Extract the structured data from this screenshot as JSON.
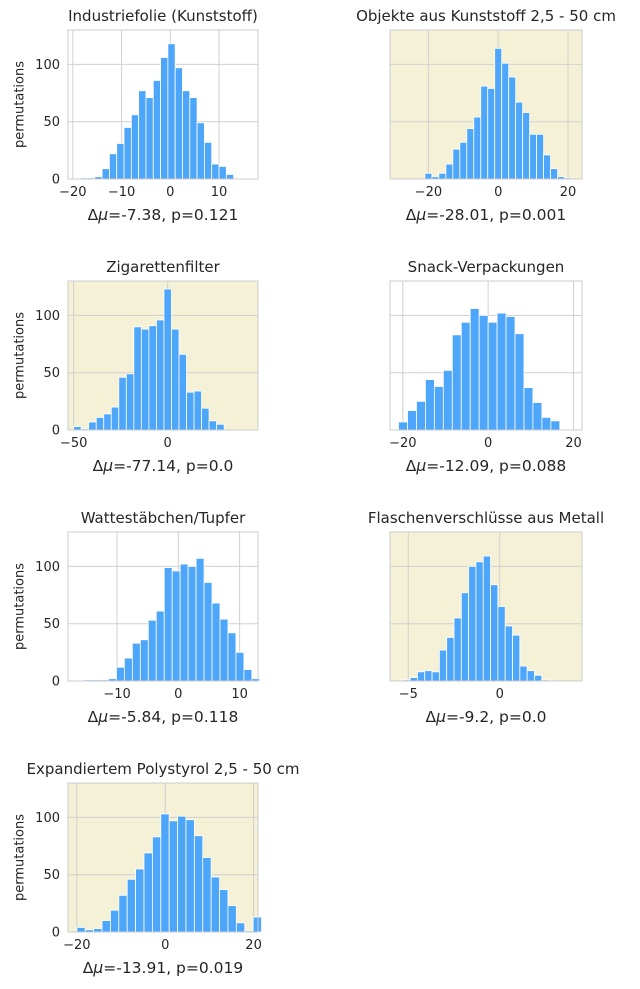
{
  "chart_data": [
    {
      "type": "histogram",
      "title": "Industriefolie (Kunststoff)",
      "ylabel": "permutations",
      "caption_prefix": "Δ",
      "caption_mu": "μ",
      "caption_rest": "=-7.38, p=0.121",
      "observed_diff": -7.38,
      "p_value": 0.121,
      "highlighted": false,
      "background": "#ffffff",
      "xlim": [
        -21,
        18
      ],
      "ylim": [
        0,
        130
      ],
      "xticks": [
        -20,
        -10,
        0,
        10
      ],
      "yticks": [
        0,
        50,
        100
      ],
      "bin_start": -18.5,
      "bin_width": 1.5,
      "counts": [
        1,
        1,
        2,
        9,
        22,
        31,
        45,
        56,
        77,
        71,
        86,
        106,
        118,
        97,
        77,
        71,
        49,
        32,
        13,
        11,
        4
      ]
    },
    {
      "type": "histogram",
      "title": "Objekte aus Kunststoff 2,5 - 50 cm",
      "ylabel": "",
      "caption_prefix": "Δ",
      "caption_mu": "μ",
      "caption_rest": "=-28.01, p=0.001",
      "observed_diff": -28.01,
      "p_value": 0.001,
      "highlighted": true,
      "background": "#f4f1d6",
      "xlim": [
        -31,
        24
      ],
      "ylim": [
        0,
        130
      ],
      "xticks": [
        -20,
        0,
        20
      ],
      "yticks": [
        0,
        50,
        100
      ],
      "bin_start": -21,
      "bin_width": 2,
      "counts": [
        5,
        2,
        5,
        13,
        26,
        32,
        44,
        54,
        81,
        79,
        114,
        101,
        89,
        67,
        58,
        39,
        39,
        21,
        9,
        2,
        1
      ]
    },
    {
      "type": "histogram",
      "title": "Zigarettenfilter",
      "ylabel": "permutations",
      "caption_prefix": "Δ",
      "caption_mu": "μ",
      "caption_rest": "=-77.14, p=0.0",
      "observed_diff": -77.14,
      "p_value": 0.0,
      "highlighted": true,
      "background": "#f4f1d6",
      "xlim": [
        -53,
        48
      ],
      "ylim": [
        0,
        130
      ],
      "xticks": [
        -50,
        0
      ],
      "yticks": [
        0,
        50,
        100
      ],
      "bin_start": -50,
      "bin_width": 4,
      "counts": [
        3,
        1,
        7,
        11,
        14,
        20,
        46,
        49,
        90,
        88,
        91,
        96,
        123,
        88,
        66,
        33,
        34,
        19,
        8,
        5
      ]
    },
    {
      "type": "histogram",
      "title": "Snack-Verpackungen",
      "ylabel": "",
      "caption_prefix": "Δ",
      "caption_mu": "μ",
      "caption_rest": "=-12.09, p=0.088",
      "observed_diff": -12.09,
      "p_value": 0.088,
      "highlighted": false,
      "background": "#ffffff",
      "xlim": [
        -23,
        22
      ],
      "ylim": [
        0,
        130
      ],
      "xticks": [
        -20,
        0,
        20
      ],
      "yticks": [
        0,
        50,
        100
      ],
      "bin_start": -21,
      "bin_width": 2.1,
      "counts": [
        7,
        17,
        25,
        44,
        38,
        52,
        83,
        94,
        106,
        100,
        94,
        102,
        99,
        84,
        37,
        24,
        11,
        8
      ]
    },
    {
      "type": "histogram",
      "title": "Wattestäbchen/Tupfer",
      "ylabel": "permutations",
      "caption_prefix": "Δ",
      "caption_mu": "μ",
      "caption_rest": "=-5.84, p=0.118",
      "observed_diff": -5.84,
      "p_value": 0.118,
      "highlighted": false,
      "background": "#ffffff",
      "xlim": [
        -18,
        13
      ],
      "ylim": [
        0,
        130
      ],
      "xticks": [
        -10,
        0,
        10
      ],
      "yticks": [
        0,
        50,
        100
      ],
      "bin_start": -15.3,
      "bin_width": 1.3,
      "counts": [
        1,
        1,
        1,
        2,
        12,
        20,
        33,
        36,
        53,
        61,
        99,
        96,
        102,
        100,
        107,
        86,
        68,
        54,
        42,
        25,
        10,
        2
      ]
    },
    {
      "type": "histogram",
      "title": "Flaschenverschlüsse aus Metall",
      "ylabel": "",
      "caption_prefix": "Δ",
      "caption_mu": "μ",
      "caption_rest": "=-9.2, p=0.0",
      "observed_diff": -9.2,
      "p_value": 0.0,
      "highlighted": true,
      "background": "#f4f1d6",
      "xlim": [
        -6,
        4.5
      ],
      "ylim": [
        0,
        130
      ],
      "xticks": [
        -5,
        0
      ],
      "yticks": [
        0,
        50,
        100
      ],
      "bin_start": -5.3,
      "bin_width": 0.4,
      "counts": [
        1,
        3,
        8,
        9,
        8,
        27,
        38,
        55,
        77,
        100,
        104,
        109,
        84,
        65,
        48,
        40,
        13,
        9,
        5,
        1
      ]
    },
    {
      "type": "histogram",
      "title": "Expandiertem Polystyrol 2,5 - 50 cm",
      "ylabel": "permutations",
      "caption_prefix": "Δ",
      "caption_mu": "μ",
      "caption_rest": "=-13.91, p=0.019",
      "observed_diff": -13.91,
      "p_value": 0.019,
      "highlighted": true,
      "background": "#f4f1d6",
      "xlim": [
        -22,
        21
      ],
      "ylim": [
        0,
        130
      ],
      "xticks": [
        -20,
        0,
        20
      ],
      "yticks": [
        0,
        50,
        100
      ],
      "bin_start": -20,
      "bin_width": 1.9,
      "counts": [
        4,
        2,
        3,
        10,
        19,
        32,
        46,
        55,
        69,
        83,
        103,
        97,
        101,
        98,
        84,
        65,
        48,
        37,
        23,
        8,
        1,
        13
      ]
    }
  ],
  "style": {
    "bar_color": "#4da6fa",
    "bar_edge": "#ffffff",
    "grid_color": "#d0d0d0",
    "spine_color": "#cccccc",
    "highlight_bg": "#f4f1d6"
  }
}
